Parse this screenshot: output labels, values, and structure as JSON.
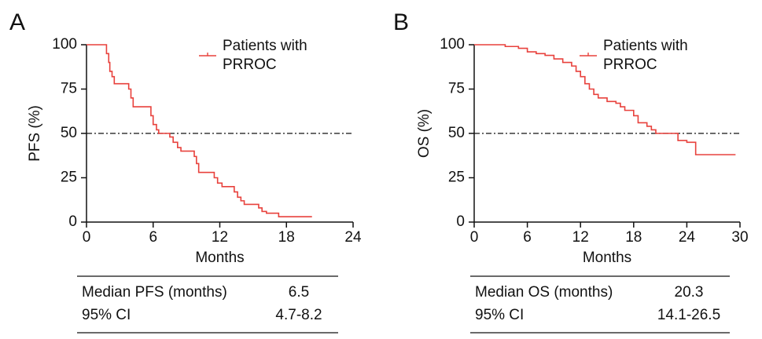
{
  "chart_data": [
    {
      "type": "line",
      "panel_label": "A",
      "step": "post",
      "xlabel": "Months",
      "ylabel": "PFS (%)",
      "xlim": [
        0,
        24
      ],
      "xticks": [
        0,
        6,
        12,
        18,
        24
      ],
      "ylim": [
        0,
        100
      ],
      "yticks": [
        0,
        25,
        50,
        75,
        100
      ],
      "hline": 50,
      "x": [
        0,
        1.8,
        2.0,
        2.1,
        2.3,
        2.5,
        3.8,
        4.0,
        4.2,
        5.8,
        6.0,
        6.3,
        6.5,
        7.5,
        7.8,
        8.2,
        8.5,
        9.7,
        9.9,
        10.1,
        11.5,
        11.8,
        12.2,
        13.3,
        13.6,
        13.9,
        14.2,
        15.5,
        15.8,
        16.2,
        17.3,
        20.3
      ],
      "series": [
        {
          "name": "Patients with PRROC",
          "color": "#e8413c",
          "values": [
            100,
            95,
            90,
            85,
            82,
            78,
            75,
            70,
            65,
            60,
            55,
            52,
            50,
            48,
            45,
            42,
            40,
            37,
            33,
            28,
            25,
            22,
            20,
            17,
            14,
            12,
            10,
            8,
            6,
            5,
            3,
            3
          ]
        }
      ],
      "table": {
        "rows": [
          [
            "Median PFS (months)",
            "6.5"
          ],
          [
            "95% CI",
            "4.7-8.2"
          ]
        ]
      }
    },
    {
      "type": "line",
      "panel_label": "B",
      "step": "post",
      "xlabel": "Months",
      "ylabel": "OS (%)",
      "xlim": [
        0,
        30
      ],
      "xticks": [
        0,
        6,
        12,
        18,
        24,
        30
      ],
      "ylim": [
        0,
        100
      ],
      "yticks": [
        0,
        25,
        50,
        75,
        100
      ],
      "hline": 50,
      "x": [
        0,
        3.5,
        5,
        6,
        7,
        8,
        9,
        10,
        11,
        11.5,
        12,
        12.5,
        13,
        13.5,
        14,
        15,
        16,
        16.5,
        17,
        18,
        18.5,
        19.5,
        20,
        20.5,
        23,
        24,
        25,
        29.5
      ],
      "series": [
        {
          "name": "Patients with PRROC",
          "color": "#e8413c",
          "values": [
            100,
            99,
            98,
            96,
            95,
            94,
            92,
            90,
            88,
            85,
            82,
            78,
            75,
            72,
            70,
            68,
            67,
            65,
            63,
            60,
            56,
            54,
            52,
            50,
            46,
            45,
            38,
            38
          ]
        }
      ],
      "table": {
        "rows": [
          [
            "Median OS (months)",
            "20.3"
          ],
          [
            "95% CI",
            "14.1-26.5"
          ]
        ]
      }
    }
  ]
}
